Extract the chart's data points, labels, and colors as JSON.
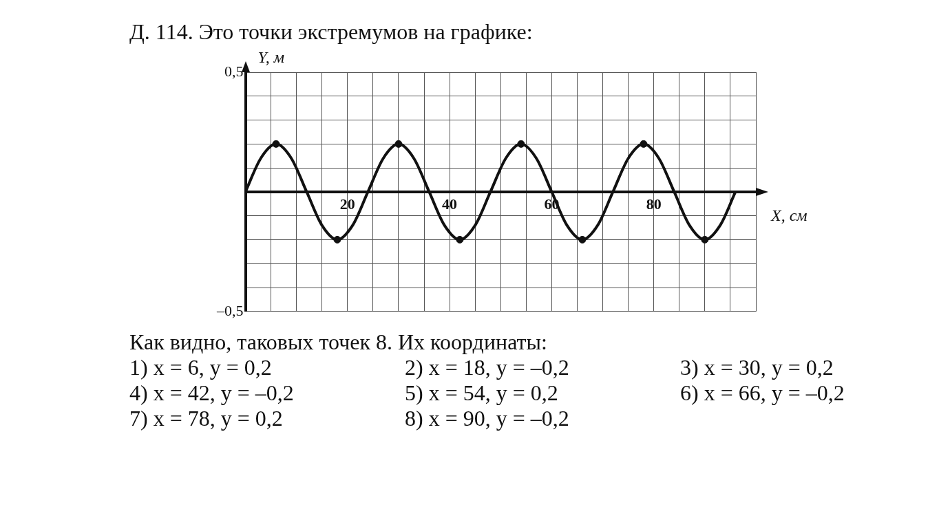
{
  "chart_data": {
    "type": "line",
    "title": "Д. 114. Это точки экстремумов на графике:",
    "xlabel": "X, см",
    "ylabel": "Y, м",
    "xlim": [
      0,
      100
    ],
    "ylim": [
      -0.5,
      0.5
    ],
    "xticks": [
      {
        "value": 0,
        "label": null
      },
      {
        "value": 5,
        "label": null
      },
      {
        "value": 10,
        "label": null
      },
      {
        "value": 15,
        "label": null
      },
      20,
      {
        "value": 25,
        "label": null
      },
      {
        "value": 30,
        "label": null
      },
      {
        "value": 35,
        "label": null
      },
      40,
      {
        "value": 45,
        "label": null
      },
      {
        "value": 50,
        "label": null
      },
      {
        "value": 55,
        "label": null
      },
      60,
      {
        "value": 65,
        "label": null
      },
      {
        "value": 70,
        "label": null
      },
      {
        "value": 75,
        "label": null
      },
      80,
      {
        "value": 85,
        "label": null
      },
      {
        "value": 90,
        "label": null
      },
      {
        "value": 95,
        "label": null
      },
      {
        "value": 100,
        "label": null
      }
    ],
    "yticks": [
      {
        "value": -0.5,
        "label": "–0,5"
      },
      {
        "value": -0.4,
        "label": null
      },
      {
        "value": -0.3,
        "label": null
      },
      {
        "value": -0.2,
        "label": null
      },
      {
        "value": -0.1,
        "label": null
      },
      {
        "value": 0,
        "label": null
      },
      {
        "value": 0.1,
        "label": null
      },
      {
        "value": 0.2,
        "label": null
      },
      {
        "value": 0.3,
        "label": null
      },
      {
        "value": 0.4,
        "label": null
      },
      {
        "value": 0.5,
        "label": "0,5"
      }
    ],
    "grid": true,
    "legend": false,
    "series": [
      {
        "type": "line",
        "color": "#111111",
        "marker": "none",
        "line_style": "solid",
        "x": [
          0,
          3,
          6,
          9,
          12,
          15,
          18,
          21,
          24,
          27,
          30,
          33,
          36,
          39,
          42,
          45,
          48,
          51,
          54,
          57,
          60,
          63,
          66,
          69,
          72,
          75,
          78,
          81,
          84,
          87,
          90,
          93,
          96
        ],
        "values": [
          0,
          0.14,
          0.2,
          0.14,
          0,
          -0.14,
          -0.2,
          -0.14,
          0,
          0.14,
          0.2,
          0.14,
          0,
          -0.14,
          -0.2,
          -0.14,
          0,
          0.14,
          0.2,
          0.14,
          0,
          -0.14,
          -0.2,
          -0.14,
          0,
          0.14,
          0.2,
          0.14,
          0,
          -0.14,
          -0.2,
          -0.14,
          0
        ]
      },
      {
        "type": "scatter",
        "color": "#111111",
        "marker": "circle",
        "x": [
          6,
          18,
          30,
          42,
          54,
          66,
          78,
          90
        ],
        "values": [
          0.2,
          -0.2,
          0.2,
          -0.2,
          0.2,
          -0.2,
          0.2,
          -0.2
        ]
      }
    ],
    "annotations": [
      "Как видно, таковых точек 8. Их координаты:",
      "1) x = 6, y = 0,2",
      "2) x = 18, y = –0,2",
      "3) x = 30, y = 0,2",
      "4) x = 42, y = –0,2",
      "5) x = 54, y = 0,2",
      "6) x = 66, y = –0,2",
      "7) x = 78, y = 0,2",
      "8) x = 90, y = –0,2"
    ]
  }
}
